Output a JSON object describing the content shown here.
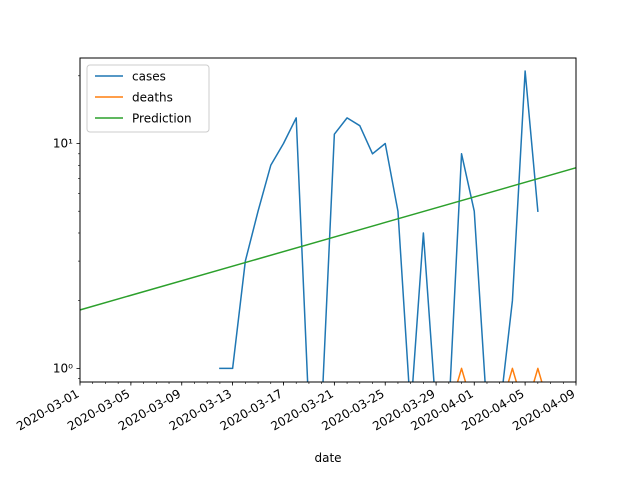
{
  "chart_data": {
    "type": "line",
    "title": "",
    "xlabel": "date",
    "ylabel": "",
    "yscale": "log",
    "xlim": [
      "2020-03-01",
      "2020-04-09"
    ],
    "ylim": [
      0.87,
      24
    ],
    "grid": false,
    "legend_position": "top-left",
    "x_ticks": [
      "2020-03-01",
      "2020-03-05",
      "2020-03-09",
      "2020-03-13",
      "2020-03-17",
      "2020-03-21",
      "2020-03-25",
      "2020-03-29",
      "2020-04-01",
      "2020-04-05",
      "2020-04-09"
    ],
    "y_ticks": [
      {
        "value": 1,
        "label": "10⁰"
      },
      {
        "value": 10,
        "label": "10¹"
      }
    ],
    "series": [
      {
        "name": "cases",
        "color": "#1f77b4",
        "points": [
          [
            "2020-03-12",
            1
          ],
          [
            "2020-03-13",
            1
          ],
          [
            "2020-03-14",
            3
          ],
          [
            "2020-03-15",
            5
          ],
          [
            "2020-03-16",
            8
          ],
          [
            "2020-03-17",
            10
          ],
          [
            "2020-03-18",
            13
          ],
          [
            "2020-03-19",
            0
          ],
          [
            "2020-03-20",
            0
          ],
          [
            "2020-03-21",
            11
          ],
          [
            "2020-03-22",
            13
          ],
          [
            "2020-03-23",
            12
          ],
          [
            "2020-03-24",
            9
          ],
          [
            "2020-03-25",
            10
          ],
          [
            "2020-03-26",
            5
          ],
          [
            "2020-03-27",
            0
          ],
          [
            "2020-03-28",
            4
          ],
          [
            "2020-03-29",
            0
          ],
          [
            "2020-03-30",
            0
          ],
          [
            "2020-03-31",
            9
          ],
          [
            "2020-04-01",
            5
          ],
          [
            "2020-04-02",
            0
          ],
          [
            "2020-04-03",
            0
          ],
          [
            "2020-04-04",
            2
          ],
          [
            "2020-04-05",
            21
          ],
          [
            "2020-04-06",
            5
          ]
        ]
      },
      {
        "name": "deaths",
        "color": "#ff7f0e",
        "points": [
          [
            "2020-03-30",
            0
          ],
          [
            "2020-03-31",
            1
          ],
          [
            "2020-04-01",
            0
          ],
          [
            "2020-04-03",
            0
          ],
          [
            "2020-04-04",
            1
          ],
          [
            "2020-04-05",
            0
          ],
          [
            "2020-04-06",
            1
          ],
          [
            "2020-04-07",
            0
          ]
        ]
      },
      {
        "name": "Prediction",
        "color": "#2ca02c",
        "points": [
          [
            "2020-03-01",
            1.82
          ],
          [
            "2020-04-09",
            7.8
          ]
        ]
      }
    ]
  }
}
